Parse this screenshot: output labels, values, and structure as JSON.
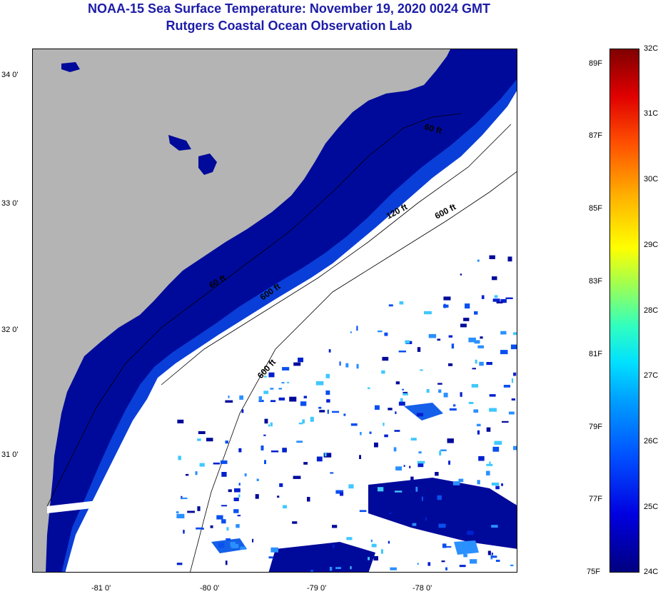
{
  "title": {
    "line1": "NOAA-15 Sea Surface Temperature:  November 19, 2020 0024 GMT",
    "line2": "Rutgers Coastal Ocean Observation Lab"
  },
  "map": {
    "lat_ticks": [
      "34 0'",
      "33 0'",
      "32 0'",
      "31 0'"
    ],
    "lon_ticks": [
      "-81 0'",
      "-80 0'",
      "-79 0'",
      "-78 0'"
    ],
    "contour_labels": [
      "60 ft",
      "120 ft",
      "600 ft",
      "60 ft",
      "600 ft",
      "600 ft"
    ],
    "colors": {
      "land": "#b4b4b4",
      "cloud": "#ffffff",
      "cool_water": "#000a9a",
      "shelf_edge": "#0a3ed8"
    }
  },
  "colorbar": {
    "fahrenheit": [
      "89F",
      "87F",
      "85F",
      "83F",
      "81F",
      "79F",
      "77F",
      "75F"
    ],
    "celsius": [
      "32C",
      "31C",
      "30C",
      "29C",
      "28C",
      "27C",
      "26C",
      "25C",
      "24C"
    ]
  }
}
